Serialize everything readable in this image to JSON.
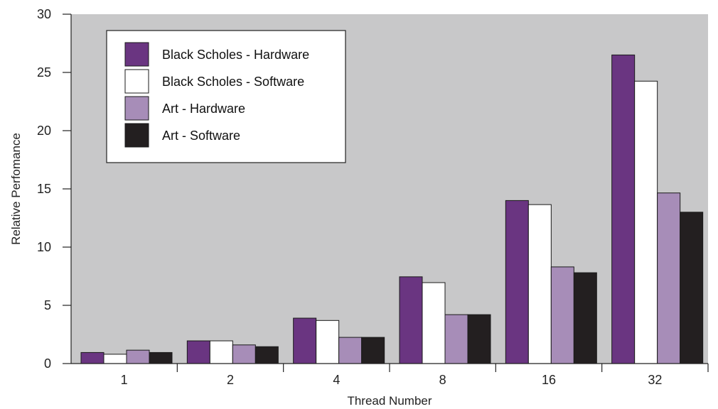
{
  "chart_data": {
    "type": "bar",
    "title": "",
    "xlabel": "Thread Number",
    "ylabel": "Relative Perfomance",
    "categories": [
      "1",
      "2",
      "4",
      "8",
      "16",
      "32"
    ],
    "ylim": [
      0,
      30
    ],
    "yticks": [
      "0",
      "5",
      "10",
      "15",
      "20",
      "25",
      "30"
    ],
    "grid": false,
    "legend_position": "top-left",
    "plot_background": "#c8c8c9",
    "series": [
      {
        "name": "Black Scholes - Hardware",
        "color": "#6a3581",
        "values": [
          0.95,
          1.95,
          3.9,
          7.45,
          14.0,
          26.5
        ]
      },
      {
        "name": "Black Scholes - Software",
        "color": "#ffffff",
        "values": [
          0.8,
          1.95,
          3.7,
          6.95,
          13.65,
          24.25
        ]
      },
      {
        "name": "Art - Hardware",
        "color": "#a78db8",
        "values": [
          1.15,
          1.6,
          2.25,
          4.2,
          8.3,
          14.65
        ]
      },
      {
        "name": "Art - Software",
        "color": "#231f20",
        "values": [
          0.95,
          1.45,
          2.25,
          4.2,
          7.8,
          13.0
        ]
      }
    ]
  }
}
